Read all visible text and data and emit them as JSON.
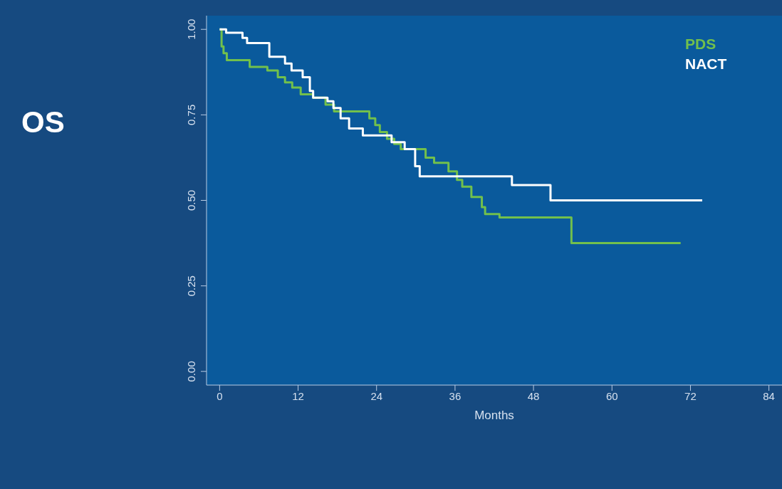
{
  "chart_data": {
    "type": "step",
    "title": "OS",
    "xlabel": "Months",
    "xlim": [
      -2,
      86
    ],
    "xticks": [
      0,
      12,
      24,
      36,
      48,
      60,
      72,
      84
    ],
    "ylim": [
      -0.04,
      1.04
    ],
    "yticks": [
      {
        "value": 0,
        "label": "0.00"
      },
      {
        "value": 0.25,
        "label": "0.25"
      },
      {
        "value": 0.5,
        "label": "0.50"
      },
      {
        "value": 0.75,
        "label": "0.75"
      },
      {
        "value": 1,
        "label": "1.00"
      }
    ],
    "grid": false,
    "legend": "top right",
    "marker": "none",
    "line_style": "solid",
    "series": [
      {
        "name": "PDS",
        "color": "#72c04c",
        "x": [
          0,
          0.3,
          0.6,
          1.1,
          4.6,
          7.3,
          8.9,
          10,
          11.1,
          12.4,
          14.3,
          16.2,
          17.5,
          22.9,
          23.8,
          24.5,
          25.6,
          26.7,
          27.7,
          31.5,
          32.8,
          35,
          36.3,
          37.1,
          38.5,
          40.1,
          40.6,
          42.8,
          53.8,
          70.5
        ],
        "values": [
          1,
          0.95,
          0.93,
          0.91,
          0.89,
          0.88,
          0.86,
          0.845,
          0.83,
          0.81,
          0.8,
          0.78,
          0.76,
          0.74,
          0.72,
          0.7,
          0.68,
          0.665,
          0.65,
          0.625,
          0.61,
          0.585,
          0.56,
          0.54,
          0.51,
          0.48,
          0.46,
          0.45,
          0.375,
          0.375
        ]
      },
      {
        "name": "NACT",
        "color": "#ffffff",
        "x": [
          0,
          1,
          3.5,
          4.2,
          7.6,
          10,
          11,
          12.7,
          13.8,
          14.3,
          16.5,
          17.4,
          18.5,
          19.8,
          21.9,
          26.3,
          28.3,
          29.9,
          30.6,
          44.7,
          50.6,
          73.8
        ],
        "values": [
          1,
          0.99,
          0.975,
          0.96,
          0.92,
          0.9,
          0.88,
          0.86,
          0.82,
          0.8,
          0.79,
          0.77,
          0.74,
          0.71,
          0.69,
          0.67,
          0.65,
          0.6,
          0.57,
          0.545,
          0.5,
          0.5
        ]
      }
    ]
  }
}
